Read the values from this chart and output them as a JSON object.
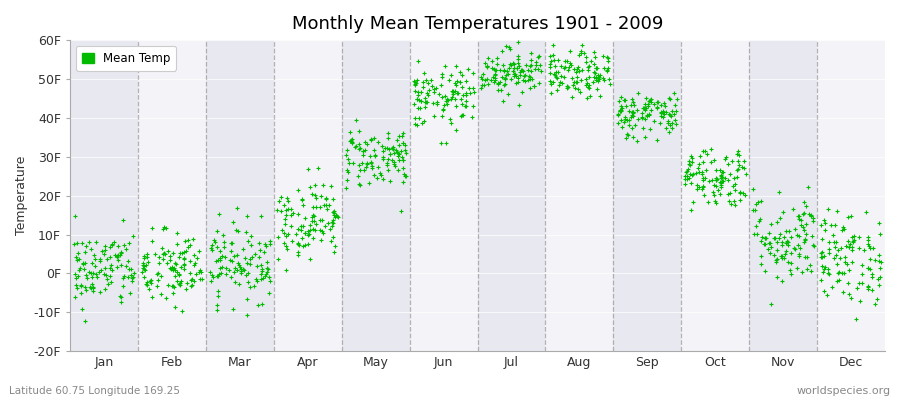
{
  "title": "Monthly Mean Temperatures 1901 - 2009",
  "ylabel": "Temperature",
  "xlabel_labels": [
    "Jan",
    "Feb",
    "Mar",
    "Apr",
    "May",
    "Jun",
    "Jul",
    "Aug",
    "Sep",
    "Oct",
    "Nov",
    "Dec"
  ],
  "subtitle": "Latitude 60.75 Longitude 169.25",
  "watermark": "worldspecies.org",
  "legend_label": "Mean Temp",
  "dot_color": "#00bb00",
  "dot_size": 5,
  "ylim": [
    -20,
    60
  ],
  "yticks": [
    -20,
    -10,
    0,
    10,
    20,
    30,
    40,
    50,
    60
  ],
  "ytick_labels": [
    "-20F",
    "-10F",
    "0F",
    "10F",
    "20F",
    "30F",
    "40F",
    "50F",
    "60F"
  ],
  "bg_color": "#ffffff",
  "plot_bg_color": "#ffffff",
  "n_years": 109,
  "monthly_means": [
    1,
    1,
    3,
    14,
    30,
    45,
    52,
    51,
    41,
    25,
    9,
    4
  ],
  "monthly_stds": [
    5,
    5,
    5,
    5,
    4,
    4,
    3,
    3,
    3,
    4,
    6,
    6
  ],
  "band_colors": [
    "#e8e8f0",
    "#f4f4f8"
  ],
  "spine_color": "#aaaaaa",
  "dashed_line_color": "#888888"
}
